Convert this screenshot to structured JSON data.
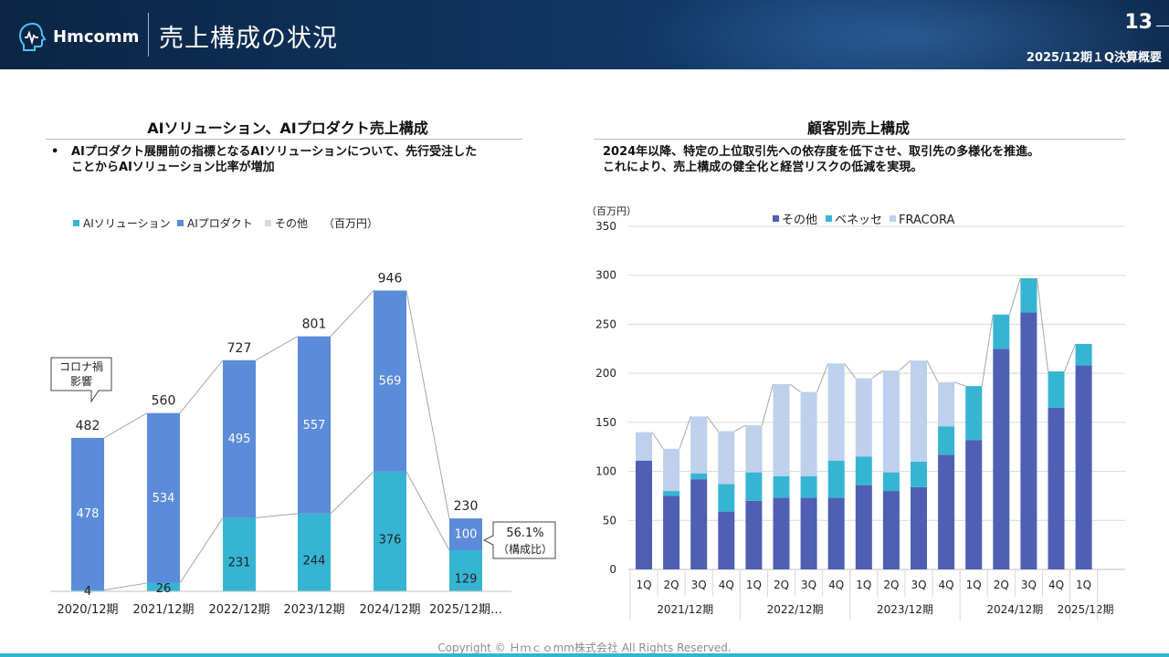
{
  "header": {
    "logo_text": "Hmcomm",
    "title": "売上構成の状況",
    "page_number": "13",
    "report_label": "2025/12期１Q決算概要"
  },
  "left_section": {
    "title": "AIソリューション、AIプロダクト売上構成",
    "bullet_marker": "•",
    "bullet_lines": [
      "AIプロダクト展開前の指標となるAIソリューションについて、先行受注した",
      "ことからAIソリューション比率が増加"
    ]
  },
  "right_section": {
    "title": "顧客別売上構成",
    "desc_lines": [
      "2024年以降、特定の上位取引先への依存度を低下させ、取引先の多様化を推進。",
      "これにより、売上構成の健全化と経営リスクの低減を実現。"
    ]
  },
  "footer": {
    "copyright": "Copyright © Ｈｍｃｏmm株式会社 All Rights Reserved."
  },
  "colors": {
    "header_bg": "#0f3460",
    "ai_solution": "#36b5d3",
    "ai_product": "#5b8bd9",
    "other_gray": "#d9d9d9",
    "customer_other": "#4e5fb4",
    "customer_benesse": "#36b5d3",
    "customer_fracora": "#bdd0ec",
    "footer_bar": "#33b4cf"
  },
  "chart_data": [
    {
      "type": "bar",
      "stacked": true,
      "unit": "（百万円）",
      "categories": [
        "2020/12期",
        "2021/12期",
        "2022/12期",
        "2023/12期",
        "2024/12期",
        "2025/12期…"
      ],
      "series": [
        {
          "name": "AIソリューション",
          "values": [
            4,
            26,
            231,
            244,
            376,
            129
          ]
        },
        {
          "name": "AIプロダクト",
          "values": [
            478,
            534,
            495,
            557,
            569,
            100
          ]
        },
        {
          "name": "その他",
          "values": [
            0,
            0,
            0,
            0,
            0,
            0
          ]
        }
      ],
      "totals": [
        482,
        560,
        727,
        801,
        946,
        230
      ],
      "callouts": [
        {
          "category": "2020/12期",
          "lines": [
            "コロナ禍",
            "影響"
          ]
        },
        {
          "category": "2025/12期…",
          "lines": [
            "56.1%",
            "（構成比）"
          ]
        }
      ],
      "legend_position": "top-left",
      "grid": false
    },
    {
      "type": "bar",
      "stacked": true,
      "ylabel": "（百万円）",
      "ylim": [
        0,
        350
      ],
      "yticks": [
        0,
        50,
        100,
        150,
        200,
        250,
        300,
        350
      ],
      "categories": [
        "1Q",
        "2Q",
        "3Q",
        "4Q",
        "1Q",
        "2Q",
        "3Q",
        "4Q",
        "1Q",
        "2Q",
        "3Q",
        "4Q",
        "1Q",
        "2Q",
        "3Q",
        "4Q",
        "1Q"
      ],
      "groups": [
        {
          "label": "2021/12期",
          "count": 4
        },
        {
          "label": "2022/12期",
          "count": 4
        },
        {
          "label": "2023/12期",
          "count": 4
        },
        {
          "label": "2024/12期",
          "count": 4
        },
        {
          "label": "2025/12期",
          "count": 1
        }
      ],
      "series": [
        {
          "name": "その他",
          "values": [
            111,
            75,
            92,
            59,
            70,
            73,
            73,
            73,
            86,
            80,
            84,
            117,
            132,
            225,
            262,
            165,
            208
          ]
        },
        {
          "name": "ベネッセ",
          "values": [
            0,
            5,
            6,
            28,
            29,
            22,
            22,
            38,
            29,
            19,
            26,
            29,
            55,
            35,
            35,
            37,
            22
          ]
        },
        {
          "name": "FRACORA",
          "values": [
            29,
            43,
            58,
            54,
            48,
            94,
            86,
            99,
            80,
            104,
            103,
            45,
            0,
            0,
            0,
            0,
            0
          ]
        }
      ],
      "legend_position": "top-center",
      "grid": true
    }
  ]
}
